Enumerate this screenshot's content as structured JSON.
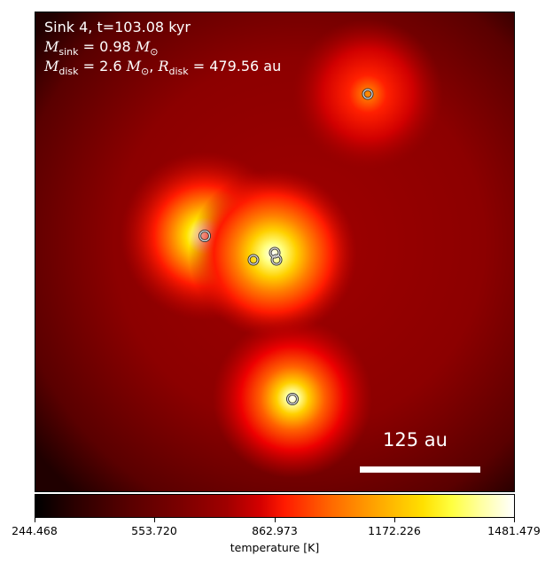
{
  "annotation": {
    "line1": "Sink 4, t=103.08 kyr",
    "m_sink_value": "0.98",
    "m_disk_value": "2.6",
    "r_disk_value": "479.56"
  },
  "scalebar": {
    "label": "125 au"
  },
  "colorbar": {
    "ticks": [
      "244.468",
      "553.720",
      "862.973",
      "1172.226",
      "1481.479"
    ],
    "label": "temperature [K]",
    "colormap": "hot"
  },
  "sinks": [
    {
      "name": "sink-top-right"
    },
    {
      "name": "sink-left"
    },
    {
      "name": "sink-center-a"
    },
    {
      "name": "sink-center-b"
    },
    {
      "name": "sink-center-c"
    },
    {
      "name": "sink-bottom"
    }
  ]
}
